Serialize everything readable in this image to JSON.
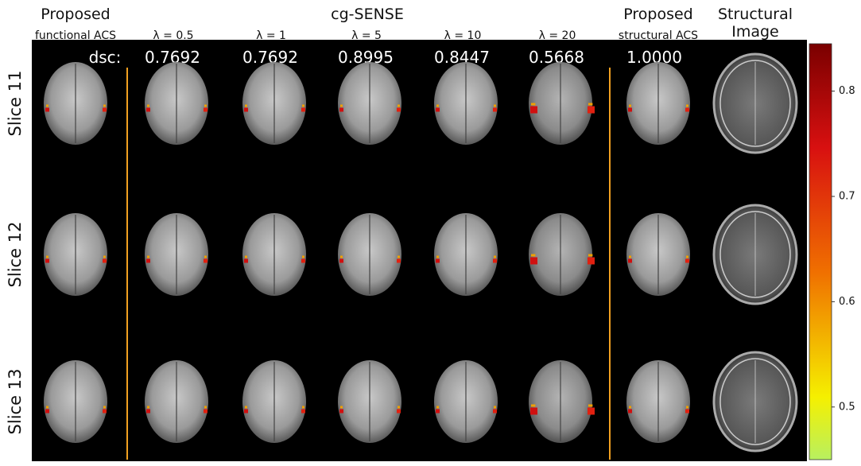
{
  "header": {
    "proposed_functional": {
      "title": "Proposed",
      "subtitle": "functional ACS"
    },
    "cg_sense": {
      "title": "cg-SENSE",
      "lambdas": [
        "λ = 0.5",
        "λ = 1",
        "λ = 5",
        "λ = 10",
        "λ = 20"
      ]
    },
    "proposed_structural": {
      "title": "Proposed",
      "subtitle": "structural ACS"
    },
    "structural": {
      "title": "Structural",
      "subtitle": "Image"
    }
  },
  "dsc": {
    "label": "dsc:",
    "values": [
      "0.7692",
      "0.7692",
      "0.8995",
      "0.8447",
      "0.5668",
      "1.0000"
    ]
  },
  "rows": [
    "Slice 11",
    "Slice 12",
    "Slice 13"
  ],
  "colorbar": {
    "lim": [
      0.45,
      0.845
    ],
    "ticks": [
      0.5,
      0.6,
      0.7,
      0.8
    ]
  }
}
